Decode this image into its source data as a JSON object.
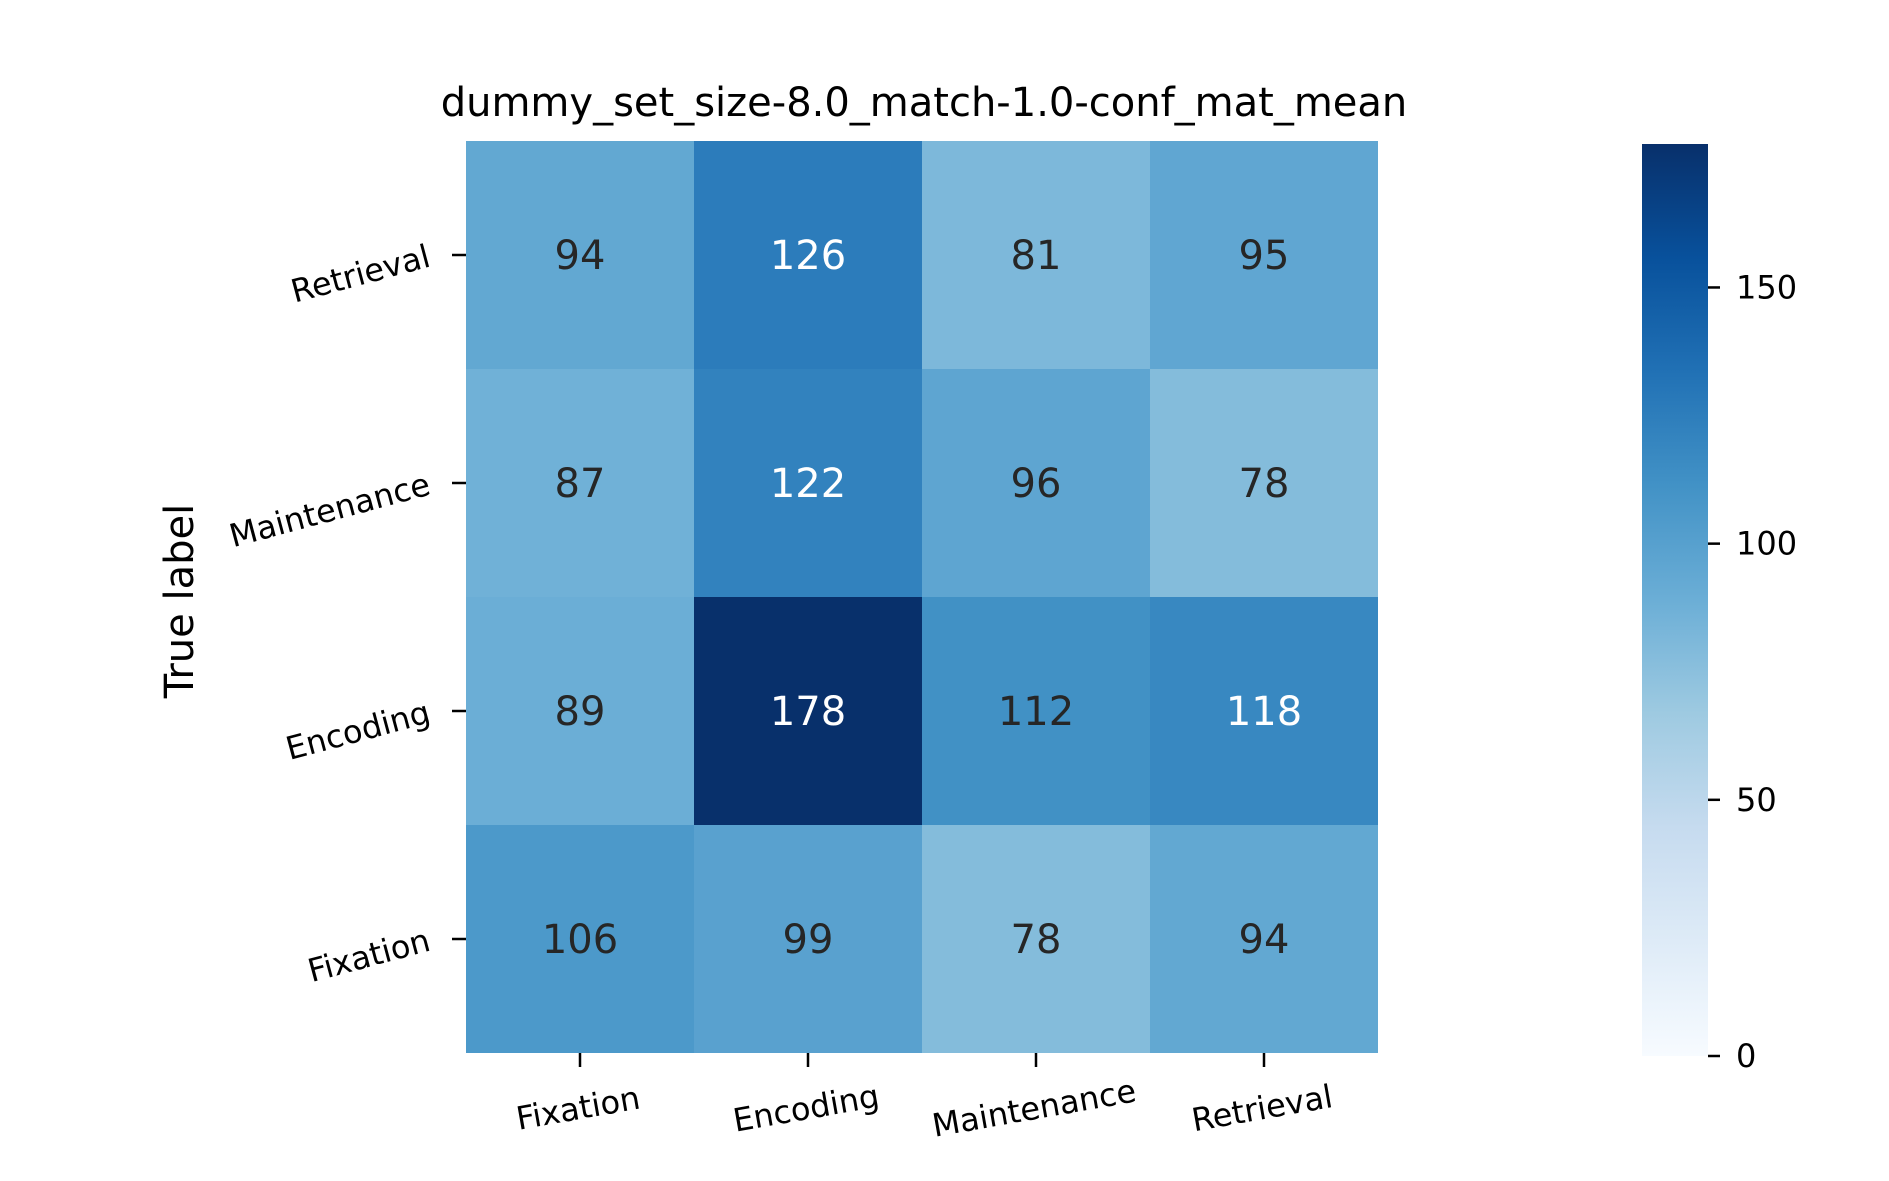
{
  "chart_data": {
    "type": "heatmap",
    "title": "dummy_set_size-8.0_match-1.0-conf_mat_mean",
    "xlabel": "",
    "ylabel": "True label",
    "x_categories": [
      "Fixation",
      "Encoding",
      "Maintenance",
      "Retrieval"
    ],
    "y_categories": [
      "Retrieval",
      "Maintenance",
      "Encoding",
      "Fixation"
    ],
    "values": [
      [
        94,
        126,
        81,
        95
      ],
      [
        87,
        122,
        96,
        78
      ],
      [
        89,
        178,
        112,
        118
      ],
      [
        106,
        99,
        78,
        94
      ]
    ],
    "colorbar": {
      "range": [
        0,
        178
      ],
      "ticks": [
        0,
        50,
        100,
        150
      ],
      "colormap": "Blues"
    }
  }
}
